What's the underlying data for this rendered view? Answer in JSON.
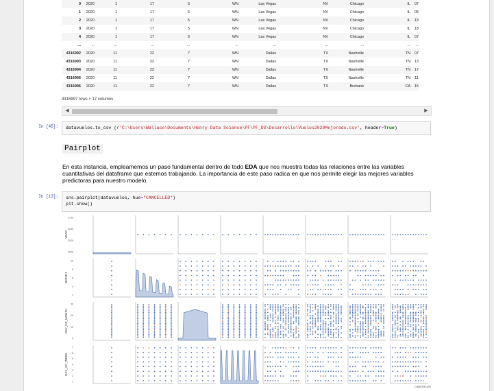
{
  "dataframe": {
    "rows": [
      [
        "0",
        "2020",
        "1",
        "17",
        "5",
        "WN",
        "Las Vegas",
        "NV",
        "Chicago",
        "IL",
        "07"
      ],
      [
        "1",
        "2020",
        "1",
        "17",
        "5",
        "WN",
        "Las Vegas",
        "NV",
        "Chicago",
        "IL",
        "05"
      ],
      [
        "2",
        "2020",
        "1",
        "17",
        "5",
        "WN",
        "Las Vegas",
        "NV",
        "Chicago",
        "IL",
        "13"
      ],
      [
        "3",
        "2020",
        "1",
        "17",
        "5",
        "WN",
        "Las Vegas",
        "NV",
        "Chicago",
        "IL",
        "18"
      ],
      [
        "4",
        "2020",
        "1",
        "17",
        "5",
        "WN",
        "Las Vegas",
        "NV",
        "Chicago",
        "IL",
        "07"
      ],
      [
        "...",
        "...",
        "...",
        "...",
        "...",
        "...",
        "...",
        "...",
        "...",
        "...",
        "..."
      ],
      [
        "4316992",
        "2020",
        "11",
        "22",
        "7",
        "WN",
        "Dallas",
        "TX",
        "Nashville",
        "TN",
        "07"
      ],
      [
        "4316993",
        "2020",
        "11",
        "22",
        "7",
        "WN",
        "Dallas",
        "TX",
        "Nashville",
        "TN",
        "13"
      ],
      [
        "4316994",
        "2020",
        "11",
        "22",
        "7",
        "WN",
        "Dallas",
        "TX",
        "Nashville",
        "TN",
        "17"
      ],
      [
        "4316995",
        "2020",
        "11",
        "22",
        "7",
        "WN",
        "Dallas",
        "TX",
        "Nashville",
        "TN",
        "11"
      ],
      [
        "4316996",
        "2020",
        "11",
        "22",
        "7",
        "WN",
        "Dallas",
        "TX",
        "Burbank",
        "CA",
        "15"
      ]
    ],
    "shape_text": "4316997 rows × 17 columns"
  },
  "scrollbar": {
    "left_arrow": "◀",
    "right_arrow": "▶"
  },
  "cell_45": {
    "prompt": "In [45]:",
    "code_prefix": "datavuelos.to_csv (",
    "code_string": "r'C:\\Users\\Wallace\\Documents\\Henry Data Science\\PF\\PF_DS\\Desarrollo\\Vuelos2020Mejorado.csv'",
    "code_sep": ", header",
    "code_eq": "=",
    "code_true": "True",
    "code_close": ")"
  },
  "markdown": {
    "heading": "Pairplot",
    "text_before": "En esta instancia, empleamemos un paso fundamental dentro de todo ",
    "text_bold": "EDA",
    "text_after": " que nos muestra todas las relaciones entre las variables cuantitativas del dataframe que estemos trabajando. La importancia de este paso radica en que nos permite elegir las mejores variables predictoras para nuestro modelo."
  },
  "cell_13": {
    "prompt": "In [13]:",
    "line1_prefix": "sns.pairplot(datavuelos, hue",
    "line1_eq": "=",
    "line1_string": "\"CANCELLED\"",
    "line1_close": ")",
    "line2": "plt.show()"
  },
  "pairplot": {
    "row_labels": [
      "YEAR",
      "MONTH",
      "DAY_OF_MONTH",
      "DAY_OF_WEEK"
    ],
    "y_ticks": [
      [
        "2000",
        "2020",
        "2040",
        "1750"
      ],
      [
        "2",
        "4",
        "6",
        "8",
        "10"
      ],
      [
        "0",
        "10",
        "20",
        "30"
      ],
      [
        "1",
        "2",
        "3",
        "4",
        "5",
        "6",
        "7"
      ]
    ],
    "corner_label": "CANCELLED",
    "colors": {
      "primary": "#4c72b0",
      "secondary": "#dd8452",
      "grid": "#cccccc"
    }
  }
}
